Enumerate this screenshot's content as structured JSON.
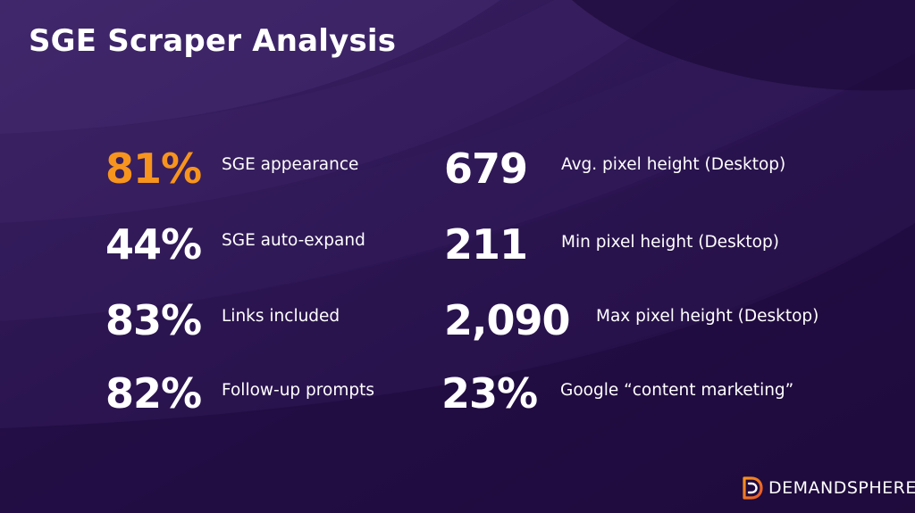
{
  "slide": {
    "title": "SGE Scraper Analysis",
    "accent_color": "#f7941d",
    "background_color": "#23103f"
  },
  "stats_left": [
    {
      "value": "81%",
      "label": "SGE appearance",
      "highlight": true
    },
    {
      "value": "44%",
      "label": "SGE auto-expand",
      "highlight": false
    },
    {
      "value": "83%",
      "label": "Links included",
      "highlight": false
    },
    {
      "value": "82%",
      "label": "Follow-up prompts",
      "highlight": false
    }
  ],
  "stats_right": [
    {
      "value": "679",
      "label": "Avg. pixel height (Desktop)"
    },
    {
      "value": "211",
      "label": "Min pixel height (Desktop)"
    },
    {
      "value": "2,090",
      "label": "Max pixel height (Desktop)"
    },
    {
      "value": "23%",
      "label": "Google “content marketing”"
    }
  ],
  "brand": {
    "name": "DEMANDSPHERE",
    "logo_icon": "demandsphere-logo-icon"
  }
}
